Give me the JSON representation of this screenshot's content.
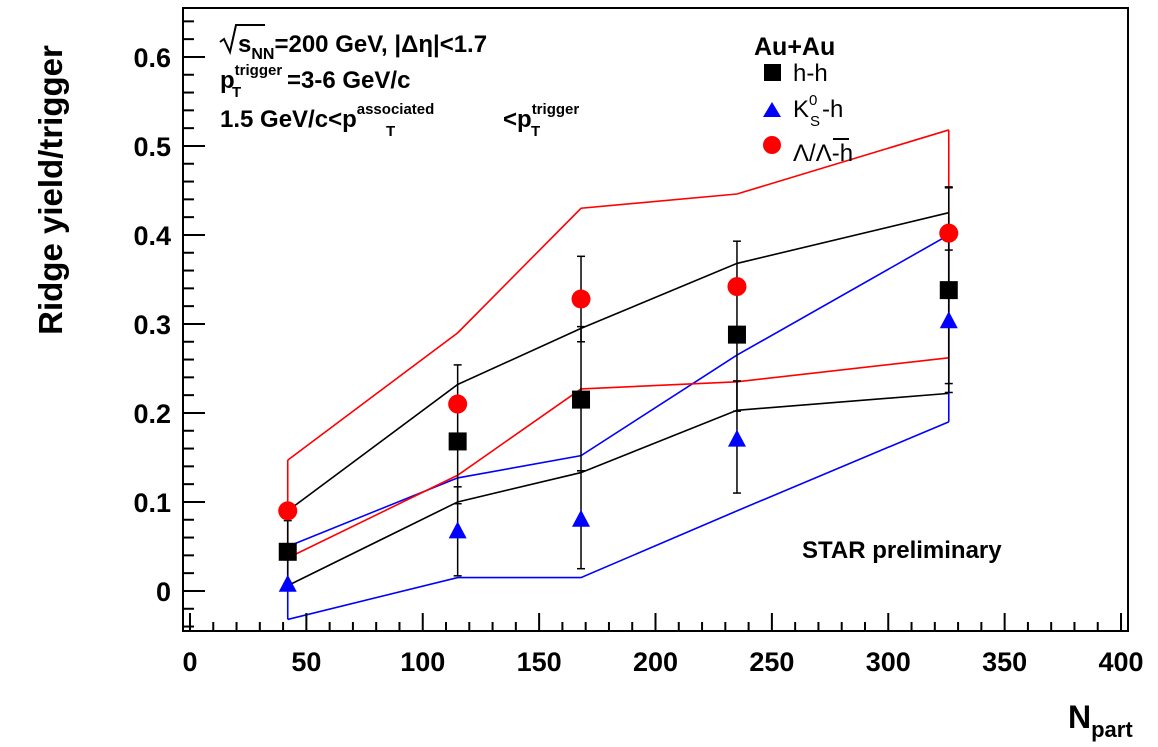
{
  "chart_data": {
    "type": "scatter",
    "xlabel": "N",
    "xlabel_sub": "part",
    "ylabel": "Ridge yield/trigger",
    "xlim": [
      -3,
      403
    ],
    "ylim": [
      -0.045,
      0.655
    ],
    "x_ticks": [
      0,
      50,
      100,
      150,
      200,
      250,
      300,
      350,
      400
    ],
    "y_ticks": [
      0,
      0.1,
      0.2,
      0.3,
      0.4,
      0.5,
      0.6
    ],
    "y_tick_labels": [
      "0",
      "0.1",
      "0.2",
      "0.3",
      "0.4",
      "0.5",
      "0.6"
    ],
    "grid": false,
    "legend_position": "top-right",
    "legend_title": "Au+Au",
    "annotations": {
      "line1": {
        "sqrt": "s",
        "sub": "NN",
        "rest": "=200 GeV, |Δη|<1.7"
      },
      "line2": {
        "p": "p",
        "sup": "trigger",
        "sub": "T",
        "rest": "=3-6 GeV/c"
      },
      "line3": {
        "a": "1.5 GeV/c<p",
        "sup1": "associated",
        "sub1": "T",
        "b": "<p",
        "sup2": "trigger",
        "sub2": "T"
      }
    },
    "watermark": "STAR preliminary",
    "series": [
      {
        "name": "h-h",
        "label_main": "h-h",
        "marker": "square",
        "color": "#000000",
        "x": [
          42,
          115,
          168,
          235,
          326
        ],
        "y": [
          0.044,
          0.168,
          0.215,
          0.288,
          0.338
        ],
        "err_low": [
          0.035,
          0.07,
          0.08,
          0.086,
          0.105
        ],
        "err_high": [
          0.035,
          0.086,
          0.082,
          0.105,
          0.115
        ],
        "sys_upper": [
          0.09,
          0.232,
          0.295,
          0.368,
          0.425
        ],
        "sys_lower": [
          0.006,
          0.1,
          0.133,
          0.203,
          0.222
        ]
      },
      {
        "name": "K0S-h",
        "label_main": "K",
        "label_sup": "0",
        "label_sub": "S",
        "label_suffix": "-h",
        "marker": "triangle",
        "color": "#0000ff",
        "x": [
          42,
          115,
          168,
          235,
          326
        ],
        "y": [
          0.007,
          0.067,
          0.08,
          0.17,
          0.303
        ],
        "err_low": [
          0,
          0.05,
          0.055,
          0.06,
          0.08
        ],
        "err_high": [
          0,
          0.05,
          0.055,
          0.066,
          0.08
        ],
        "sys_upper": [
          0.05,
          0.127,
          0.152,
          0.265,
          0.4
        ],
        "sys_lower": [
          -0.032,
          0.015,
          0.015,
          0.09,
          0.19
        ]
      },
      {
        "name": "Lambda/AntiLambda-h",
        "label_main": "Λ/",
        "label_over": "Λ",
        "label_suffix": "-h",
        "marker": "circle",
        "color": "#ff0000",
        "x": [
          42,
          115,
          168,
          235,
          326
        ],
        "y": [
          0.09,
          0.21,
          0.328,
          0.342,
          0.402
        ],
        "err_low": [
          0,
          0,
          0.048,
          0,
          0
        ],
        "err_high": [
          0,
          0,
          0.048,
          0,
          0.052
        ],
        "sys_upper": [
          0.147,
          0.29,
          0.43,
          0.446,
          0.518
        ],
        "sys_lower": [
          0.037,
          0.13,
          0.227,
          0.235,
          0.262
        ]
      }
    ]
  }
}
